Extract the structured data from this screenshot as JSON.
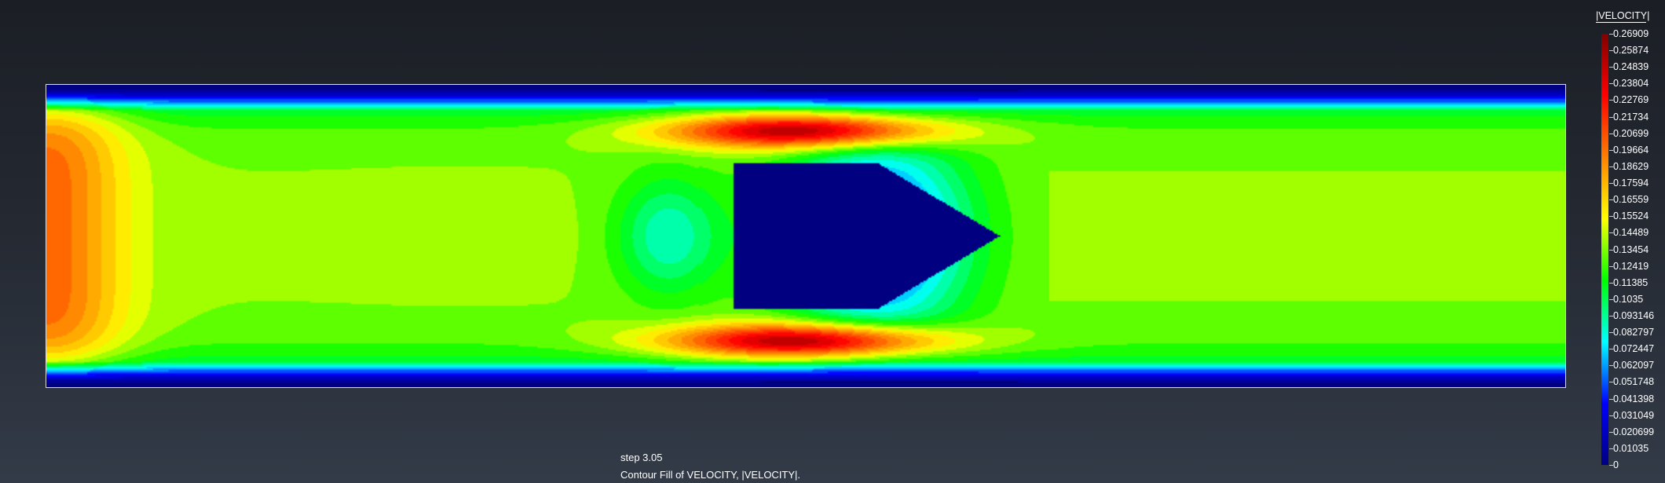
{
  "chart_data": {
    "type": "heatmap",
    "legend_title": "|VELOCITY|",
    "legend_placement": "right",
    "colorscale": [
      "#000080",
      "#0000ff",
      "#00ffff",
      "#00ff00",
      "#ffff00",
      "#ff8000",
      "#ff0000",
      "#800000"
    ],
    "range": [
      0,
      0.26909
    ],
    "legend_values": [
      "0.26909",
      "0.25874",
      "0.24839",
      "0.23804",
      "0.22769",
      "0.21734",
      "0.20699",
      "0.19664",
      "0.18629",
      "0.17594",
      "0.16559",
      "0.15524",
      "0.14489",
      "0.13454",
      "0.12419",
      "0.11385",
      "0.1035",
      "0.093146",
      "0.082797",
      "0.072447",
      "0.062097",
      "0.051748",
      "0.041398",
      "0.031049",
      "0.020699",
      "0.01035",
      "0"
    ],
    "step_label": "step 3.05",
    "caption": "Contour Fill of VELOCITY, |VELOCITY|."
  }
}
